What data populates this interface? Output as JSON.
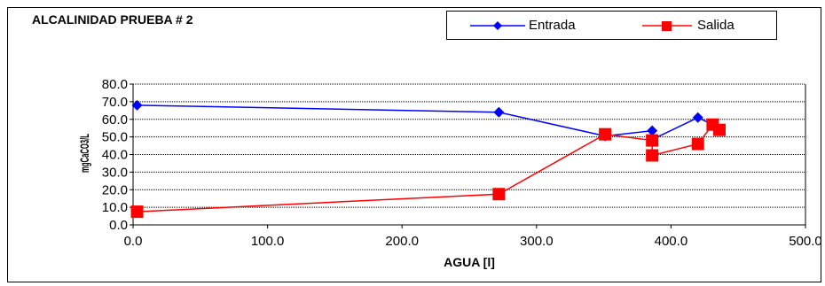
{
  "chart_data": {
    "type": "scatter",
    "title": "ALCALINIDAD PRUEBA # 2",
    "xlabel": "AGUA [l]",
    "ylabel": "mgCaCO3/L",
    "xlim": [
      0,
      500
    ],
    "ylim": [
      0,
      80
    ],
    "x_ticks": [
      "0.0",
      "100.0",
      "200.0",
      "300.0",
      "400.0",
      "500.0"
    ],
    "y_ticks": [
      "0.0",
      "10.0",
      "20.0",
      "30.0",
      "40.0",
      "50.0",
      "60.0",
      "70.0",
      "80.0"
    ],
    "grid": true,
    "legend_position": "top-right",
    "series": [
      {
        "name": "Entrada",
        "color": "#0000FF",
        "marker": "diamond",
        "points": [
          [
            3,
            68
          ],
          [
            272,
            64
          ],
          [
            351,
            50.5
          ],
          [
            386,
            53.5
          ],
          [
            386,
            48.5
          ],
          [
            420,
            61
          ],
          [
            431,
            57
          ],
          [
            436,
            54
          ]
        ]
      },
      {
        "name": "Salida",
        "color": "#FF0000",
        "marker": "square",
        "points": [
          [
            3,
            7.5
          ],
          [
            272,
            17.5
          ],
          [
            351,
            51.5
          ],
          [
            386,
            48
          ],
          [
            386,
            39.5
          ],
          [
            420,
            46
          ],
          [
            431,
            57
          ],
          [
            436,
            54
          ]
        ]
      }
    ]
  }
}
